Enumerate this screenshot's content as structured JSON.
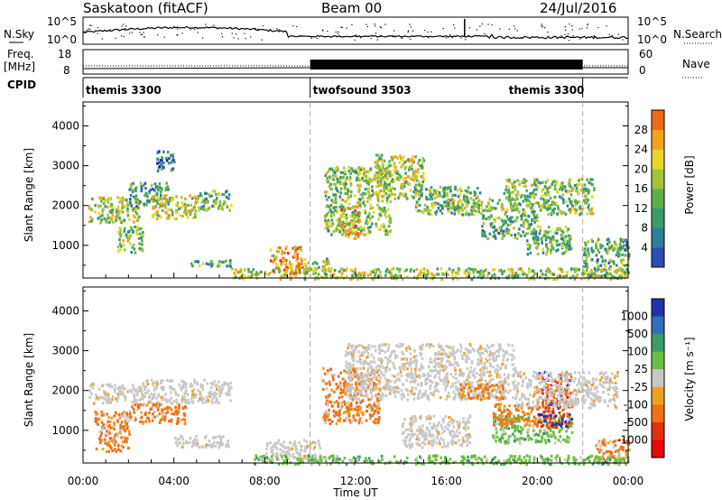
{
  "header": {
    "title": "Saskatoon (fitACF)",
    "beam": "Beam 00",
    "date": "24/Jul/2016"
  },
  "nsky_panel": {
    "left_label": "N.Sky",
    "right_label": "N.Search",
    "left_ticks": [
      "10^5",
      "10^0"
    ],
    "right_ticks": [
      "10^5",
      "10^0"
    ]
  },
  "freq_panel": {
    "label_line1": "Freq.",
    "label_line2": "[MHz]",
    "left_ticks": [
      "18",
      "8"
    ],
    "right_label": "Nave",
    "right_ticks": [
      "60",
      "0"
    ]
  },
  "cpid_panel": {
    "label": "CPID",
    "segments": [
      {
        "name": "themis 3300",
        "start_hour": 0,
        "end_hour": 10
      },
      {
        "name": "twofsound 3503",
        "start_hour": 10,
        "end_hour": 22
      },
      {
        "name": "themis 3300",
        "start_hour": 22,
        "end_hour": 24
      }
    ]
  },
  "chart_data": [
    {
      "type": "heatmap",
      "quantity": "Power",
      "ylabel": "Slant Range [km]",
      "ylim": [
        180,
        4600
      ],
      "yticks": [
        "4000",
        "3000",
        "2000",
        "1000"
      ],
      "xlim_hours": [
        0,
        24
      ],
      "colorbar": {
        "label": "Power [dB]",
        "range": [
          0,
          32
        ],
        "ticks": [
          "28",
          "24",
          "20",
          "16",
          "12",
          "8",
          "4"
        ],
        "colors": [
          "#1a1acc",
          "#2a4fb0",
          "#2e7d9b",
          "#3c9a6a",
          "#5cb04a",
          "#a8c23a",
          "#e8d52a",
          "#f0a31e",
          "#ee6a18",
          "#e02a10"
        ]
      },
      "regions": [
        {
          "t0": 0.2,
          "t1": 2.5,
          "r0": 1600,
          "r1": 2250,
          "level": 0.55
        },
        {
          "t0": 2.0,
          "t1": 3.8,
          "r0": 2000,
          "r1": 2600,
          "level": 0.35
        },
        {
          "t0": 3.0,
          "t1": 5.0,
          "r0": 1700,
          "r1": 2300,
          "level": 0.6
        },
        {
          "t0": 5.0,
          "t1": 6.5,
          "r0": 1900,
          "r1": 2400,
          "level": 0.45
        },
        {
          "t0": 1.5,
          "t1": 2.6,
          "r0": 850,
          "r1": 1500,
          "level": 0.5
        },
        {
          "t0": 3.2,
          "t1": 4.0,
          "r0": 2900,
          "r1": 3400,
          "level": 0.2
        },
        {
          "t0": 4.5,
          "t1": 6.5,
          "r0": 500,
          "r1": 650,
          "level": 0.4
        },
        {
          "t0": 8.2,
          "t1": 9.6,
          "r0": 300,
          "r1": 1000,
          "level": 0.75
        },
        {
          "t0": 9.6,
          "t1": 10.8,
          "r0": 400,
          "r1": 700,
          "level": 0.5
        },
        {
          "t0": 10.6,
          "t1": 13.5,
          "r0": 1300,
          "r1": 3000,
          "level": 0.5
        },
        {
          "t0": 11.3,
          "t1": 12.2,
          "r0": 1200,
          "r1": 2000,
          "level": 0.7
        },
        {
          "t0": 12.8,
          "t1": 15.0,
          "r0": 2200,
          "r1": 3300,
          "level": 0.55
        },
        {
          "t0": 14.5,
          "t1": 17.5,
          "r0": 1800,
          "r1": 2500,
          "level": 0.45
        },
        {
          "t0": 16.0,
          "t1": 18.5,
          "r0": 1900,
          "r1": 2200,
          "level": 0.55
        },
        {
          "t0": 17.5,
          "t1": 20.0,
          "r0": 1200,
          "r1": 1800,
          "level": 0.4
        },
        {
          "t0": 18.5,
          "t1": 22.5,
          "r0": 1800,
          "r1": 2700,
          "level": 0.5
        },
        {
          "t0": 19.5,
          "t1": 21.5,
          "r0": 800,
          "r1": 1500,
          "level": 0.45
        },
        {
          "t0": 22.0,
          "t1": 24.0,
          "r0": 200,
          "r1": 1200,
          "level": 0.4
        },
        {
          "t0": 6.5,
          "t1": 24.0,
          "r0": 180,
          "r1": 450,
          "level": 0.55
        }
      ]
    },
    {
      "type": "heatmap",
      "quantity": "Velocity",
      "ylabel": "Slant Range [km]",
      "ylim": [
        180,
        4600
      ],
      "yticks": [
        "4000",
        "3000",
        "2000",
        "1000"
      ],
      "xlabel": "Time UT",
      "xticks": [
        "00:00",
        "04:00",
        "08:00",
        "12:00",
        "16:00",
        "20:00",
        "00:00"
      ],
      "xlim_hours": [
        0,
        24
      ],
      "colorbar": {
        "label": "Velocity [m s⁻¹]",
        "ticks": [
          "1000",
          "500",
          "100",
          "25",
          "-25",
          "-100",
          "-500",
          "-1000"
        ],
        "colors": [
          "#2233aa",
          "#2e6fb5",
          "#3a9a6a",
          "#6cc040",
          "#c8c8c8",
          "#f0a020",
          "#ee7018",
          "#e03010",
          "#e80808"
        ]
      },
      "regions": [
        {
          "t0": 0.2,
          "t1": 2.5,
          "r0": 1700,
          "r1": 2200,
          "level": "gray"
        },
        {
          "t0": 2.5,
          "t1": 6.5,
          "r0": 1700,
          "r1": 2300,
          "level": "gray"
        },
        {
          "t0": 0.5,
          "t1": 2.0,
          "r0": 500,
          "r1": 1500,
          "level": "orange"
        },
        {
          "t0": 2.0,
          "t1": 4.5,
          "r0": 1200,
          "r1": 1700,
          "level": "orange"
        },
        {
          "t0": 4.0,
          "t1": 6.5,
          "r0": 600,
          "r1": 900,
          "level": "gray"
        },
        {
          "t0": 8.0,
          "t1": 10.5,
          "r0": 300,
          "r1": 800,
          "level": "gray"
        },
        {
          "t0": 10.5,
          "t1": 13.0,
          "r0": 1200,
          "r1": 2600,
          "level": "orange"
        },
        {
          "t0": 11.5,
          "t1": 19.0,
          "r0": 1800,
          "r1": 3200,
          "level": "gray"
        },
        {
          "t0": 14.0,
          "t1": 17.0,
          "r0": 600,
          "r1": 1400,
          "level": "gray"
        },
        {
          "t0": 16.5,
          "t1": 18.5,
          "r0": 1800,
          "r1": 2200,
          "level": "orange"
        },
        {
          "t0": 18.0,
          "t1": 21.5,
          "r0": 700,
          "r1": 1400,
          "level": "green"
        },
        {
          "t0": 18.0,
          "t1": 20.0,
          "r0": 1100,
          "r1": 1700,
          "level": "orange"
        },
        {
          "t0": 20.0,
          "t1": 21.5,
          "r0": 1100,
          "r1": 2500,
          "level": "red"
        },
        {
          "t0": 19.0,
          "t1": 23.5,
          "r0": 1600,
          "r1": 2500,
          "level": "gray"
        },
        {
          "t0": 22.5,
          "t1": 24.0,
          "r0": 300,
          "r1": 800,
          "level": "orange"
        },
        {
          "t0": 7.5,
          "t1": 24.0,
          "r0": 180,
          "r1": 400,
          "level": "green"
        }
      ]
    }
  ]
}
